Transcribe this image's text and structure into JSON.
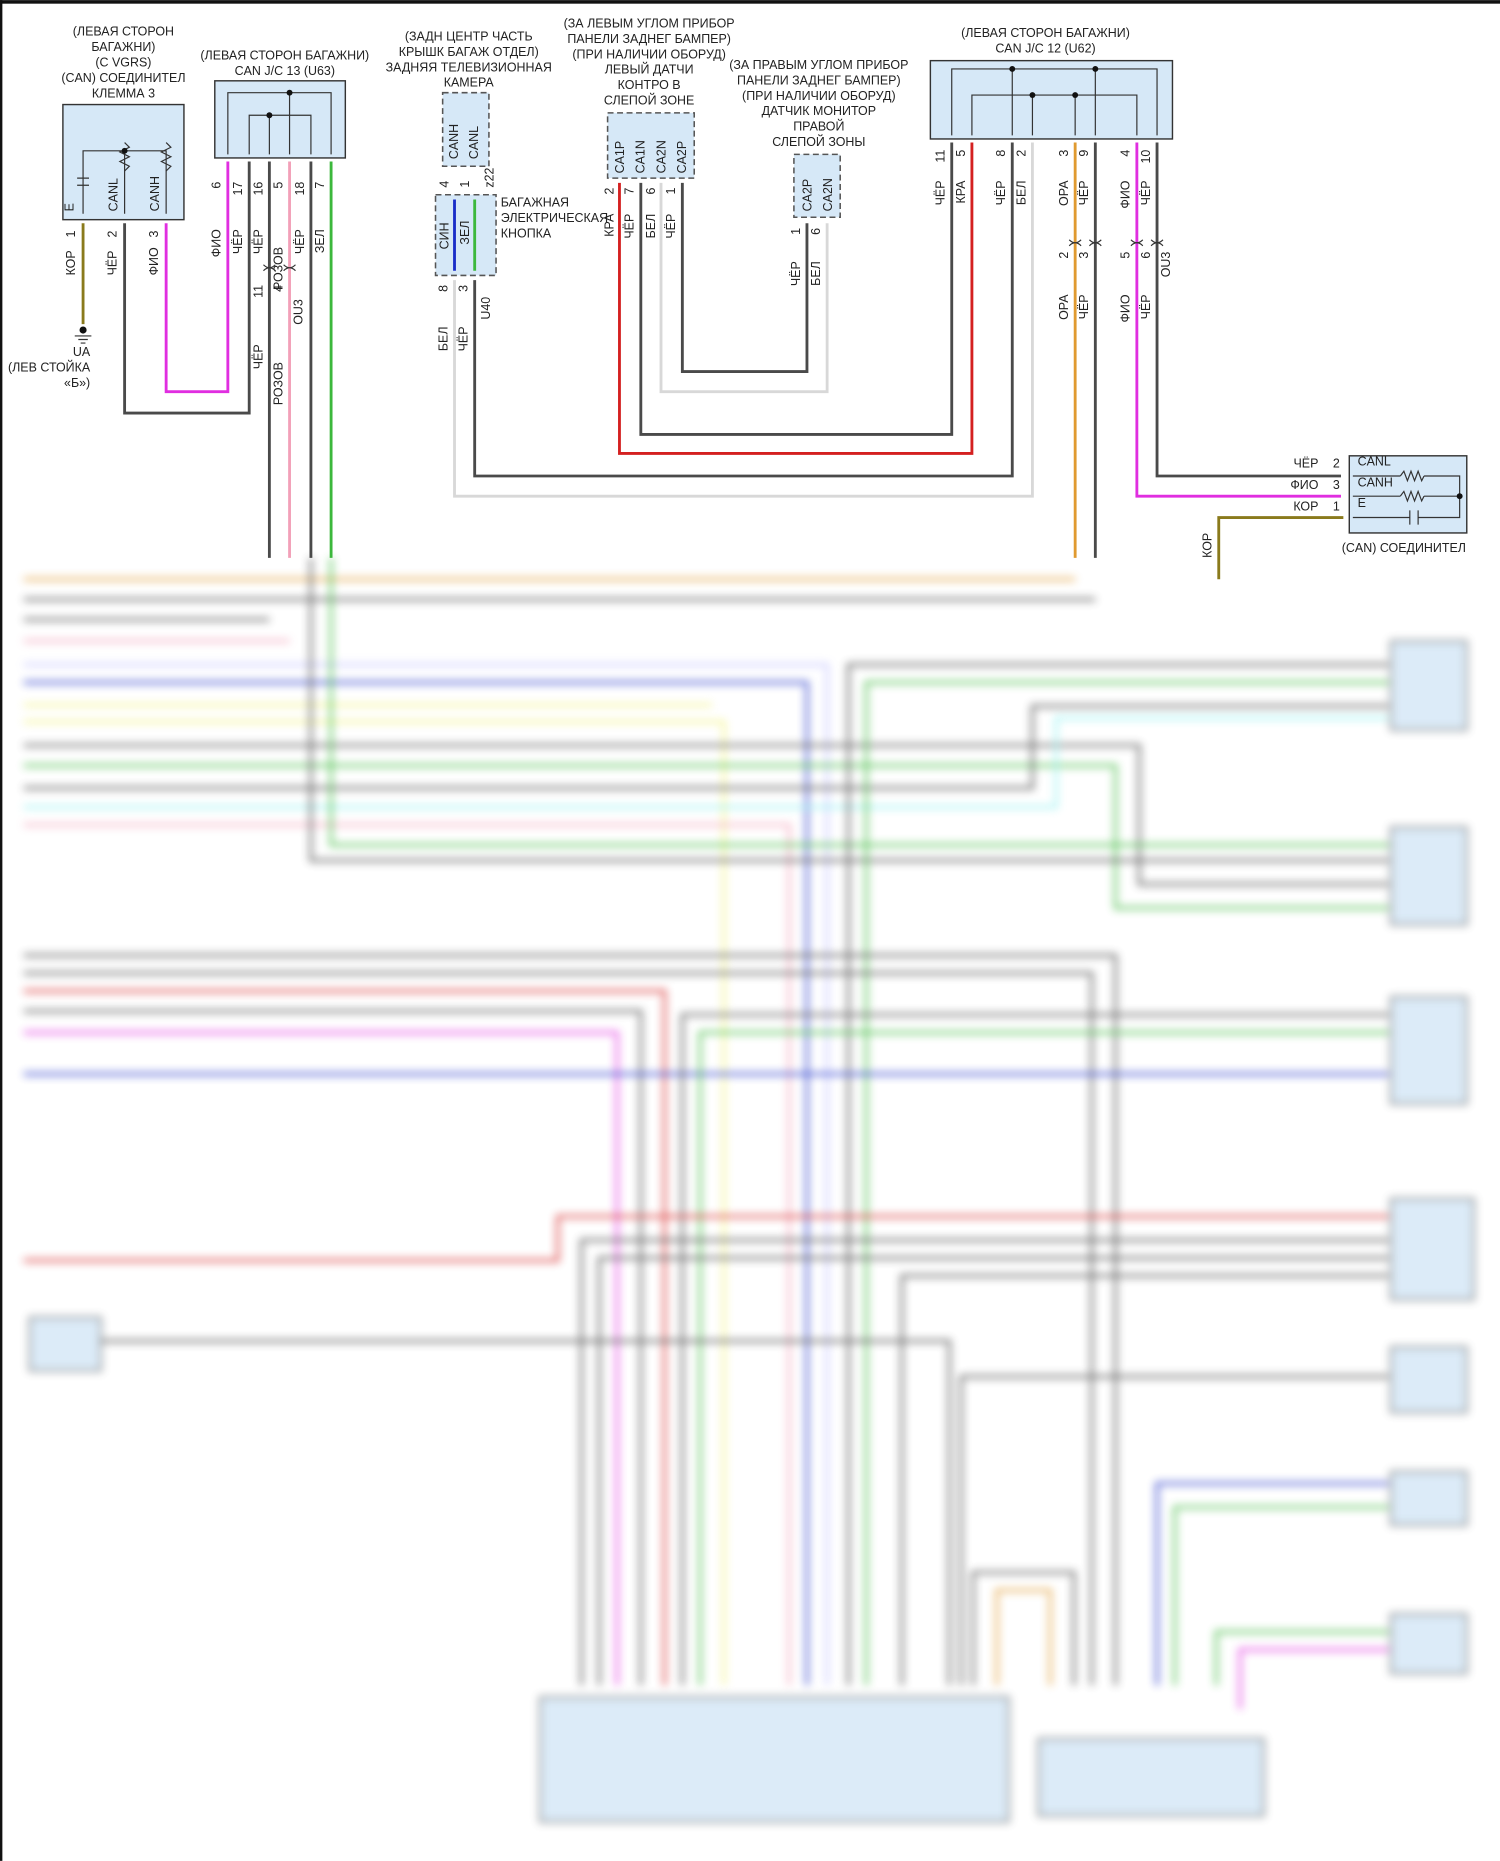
{
  "can_connector_left": {
    "title_lines": [
      "(ЛЕВАЯ СТОРОН",
      "БАГАЖНИ)",
      "(C VGRS)",
      "(CAN) СОЕДИНИТЕЛ",
      "КЛЕММА 3"
    ],
    "pins": [
      "E",
      "CANL",
      "CANH"
    ],
    "pin_numbers": [
      "1",
      "2",
      "3"
    ],
    "wires": [
      "КОР",
      "ЧЁР",
      "ФИО"
    ]
  },
  "ground": {
    "id": "UA",
    "location_lines": [
      "(ЛЕВ СТОЙКА",
      "«Б»)"
    ]
  },
  "jc13": {
    "title_lines": [
      "(ЛЕВАЯ СТОРОН БАГАЖНИ)",
      "CAN J/C 13 (U63)"
    ],
    "pin_numbers": [
      "6",
      "17",
      "16",
      "5",
      "18",
      "7"
    ],
    "wires": [
      "ФИО",
      "ЧЁР",
      "ЧЁР",
      "РОЗОВ",
      "ЧЁР",
      "ЗЕЛ"
    ],
    "inline_pins": [
      "11",
      "4"
    ],
    "inline_id": "OU3",
    "inline_wires": [
      "ЧЁР",
      "РОЗОВ"
    ]
  },
  "camera": {
    "title_lines": [
      "(ЗАДН ЦЕНТР ЧАСТЬ",
      "КРЫШК БАГАЖ ОТДЕЛ)",
      "ЗАДНЯЯ ТЕЛЕВИЗИОННАЯ",
      "КАМЕРА"
    ],
    "pins": [
      "CANH",
      "CANL"
    ],
    "pin_numbers": [
      "4",
      "1"
    ],
    "id": "z22"
  },
  "trunk_button": {
    "title_lines": [
      "БАГАЖНАЯ",
      "ЭЛЕКТРИЧЕСКАЯ",
      "КНОПКА"
    ],
    "internal_wires": [
      "СИН",
      "ЗЕЛ"
    ],
    "pin_numbers": [
      "8",
      "3"
    ],
    "id": "U40",
    "wires": [
      "БЕЛ",
      "ЧЁР"
    ]
  },
  "left_sensor": {
    "title_lines": [
      "(ЗА ЛЕВЫМ УГЛОМ ПРИБОР",
      "ПАНЕЛИ ЗАДНЕГ БАМПЕР)",
      "(ПРИ НАЛИЧИИ ОБОРУД)",
      "ЛЕВЫЙ ДАТЧИ",
      "КОНТРО В",
      "СЛЕПОЙ ЗОНЕ"
    ],
    "pins": [
      "CA1P",
      "CA1N",
      "CA2N",
      "CA2P"
    ],
    "pin_numbers": [
      "2",
      "7",
      "6",
      "1"
    ],
    "wires": [
      "КРА",
      "ЧЁР",
      "БЕЛ",
      "ЧЁР"
    ]
  },
  "right_sensor": {
    "title_lines": [
      "(ЗА ПРАВЫМ УГЛОМ ПРИБОР",
      "ПАНЕЛИ ЗАДНЕГ БАМПЕР)",
      "(ПРИ НАЛИЧИИ ОБОРУД)",
      "ДАТЧИК МОНИТОР",
      "ПРАВОЙ",
      "СЛЕПОЙ ЗОНЫ"
    ],
    "pins": [
      "CA2P",
      "CA2N"
    ],
    "pin_numbers": [
      "1",
      "6"
    ],
    "wires": [
      "ЧЁР",
      "БЕЛ"
    ]
  },
  "jc12": {
    "title_lines": [
      "(ЛЕВАЯ СТОРОН БАГАЖНИ)",
      "CAN J/C 12 (U62)"
    ],
    "pin_numbers": [
      "11",
      "5",
      "8",
      "2",
      "3",
      "9",
      "4",
      "10"
    ],
    "wires": [
      "ЧЁР",
      "КРА",
      "ЧЁР",
      "БЕЛ",
      "ОРА",
      "ЧЁР",
      "ФИО",
      "ЧЁР"
    ],
    "inline_pins": [
      "2",
      "3",
      "5",
      "6"
    ],
    "inline_id": "OU3",
    "inline_wires": [
      "ОРА",
      "ЧЁР",
      "ФИО",
      "ЧЁР"
    ]
  },
  "can_connector_right": {
    "title": "(CAN) СОЕДИНИТЕЛ",
    "pins": [
      "CANL",
      "CANH",
      "E"
    ],
    "pin_numbers": [
      "2",
      "3",
      "1"
    ],
    "wires": [
      "ЧЁР",
      "ФИО",
      "КОР"
    ],
    "ground_wire": "КОР"
  },
  "colors": {
    "connector_fill": "#d6e8f7",
    "ЧЁР": "#4a4a4a",
    "КРА": "#d42020",
    "ФИО": "#e02ee0",
    "РОЗОВ": "#f2a0b8",
    "ЗЕЛ": "#3cb83c",
    "ОРА": "#e09a30",
    "БЕЛ": "#d8d8d8",
    "КОР": "#8a7a1c",
    "СИН": "#1a2ec8"
  }
}
